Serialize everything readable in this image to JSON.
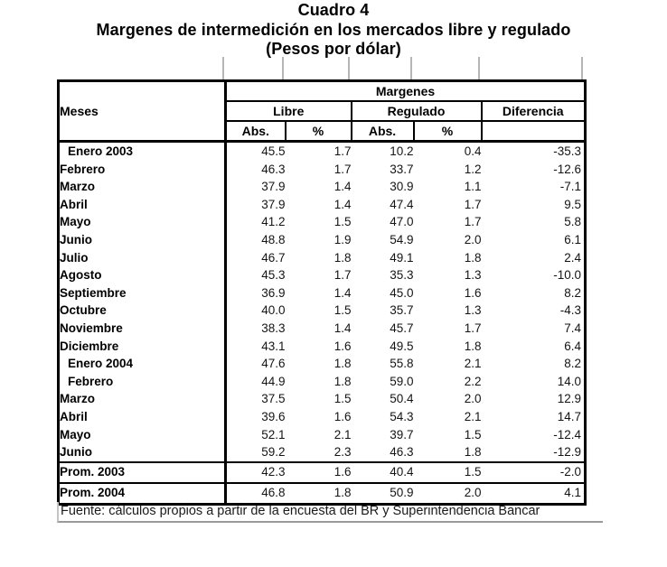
{
  "title": {
    "line1": "Cuadro 4",
    "line2": "Margenes de intermedición en los mercados libre y regulado",
    "line3": "(Pesos por dólar)"
  },
  "table": {
    "col_meses": "Meses",
    "group_margenes": "Margenes",
    "group_libre": "Libre",
    "group_regulado": "Regulado",
    "col_diferencia": "Diferencia",
    "sub_abs": "Abs.",
    "sub_pct": "%",
    "rows": [
      {
        "mes": "Enero 2003",
        "indent": true,
        "libre_abs": "45.5",
        "libre_pct": "1.7",
        "reg_abs": "10.2",
        "reg_pct": "0.4",
        "dif": "-35.3"
      },
      {
        "mes": "Febrero",
        "indent": false,
        "libre_abs": "46.3",
        "libre_pct": "1.7",
        "reg_abs": "33.7",
        "reg_pct": "1.2",
        "dif": "-12.6"
      },
      {
        "mes": "Marzo",
        "indent": false,
        "libre_abs": "37.9",
        "libre_pct": "1.4",
        "reg_abs": "30.9",
        "reg_pct": "1.1",
        "dif": "-7.1"
      },
      {
        "mes": "Abril",
        "indent": false,
        "libre_abs": "37.9",
        "libre_pct": "1.4",
        "reg_abs": "47.4",
        "reg_pct": "1.7",
        "dif": "9.5"
      },
      {
        "mes": "Mayo",
        "indent": false,
        "libre_abs": "41.2",
        "libre_pct": "1.5",
        "reg_abs": "47.0",
        "reg_pct": "1.7",
        "dif": "5.8"
      },
      {
        "mes": "Junio",
        "indent": false,
        "libre_abs": "48.8",
        "libre_pct": "1.9",
        "reg_abs": "54.9",
        "reg_pct": "2.0",
        "dif": "6.1"
      },
      {
        "mes": "Julio",
        "indent": false,
        "libre_abs": "46.7",
        "libre_pct": "1.8",
        "reg_abs": "49.1",
        "reg_pct": "1.8",
        "dif": "2.4"
      },
      {
        "mes": "Agosto",
        "indent": false,
        "libre_abs": "45.3",
        "libre_pct": "1.7",
        "reg_abs": "35.3",
        "reg_pct": "1.3",
        "dif": "-10.0"
      },
      {
        "mes": "Septiembre",
        "indent": false,
        "libre_abs": "36.9",
        "libre_pct": "1.4",
        "reg_abs": "45.0",
        "reg_pct": "1.6",
        "dif": "8.2"
      },
      {
        "mes": "Octubre",
        "indent": false,
        "libre_abs": "40.0",
        "libre_pct": "1.5",
        "reg_abs": "35.7",
        "reg_pct": "1.3",
        "dif": "-4.3"
      },
      {
        "mes": "Noviembre",
        "indent": false,
        "libre_abs": "38.3",
        "libre_pct": "1.4",
        "reg_abs": "45.7",
        "reg_pct": "1.7",
        "dif": "7.4"
      },
      {
        "mes": "Diciembre",
        "indent": false,
        "libre_abs": "43.1",
        "libre_pct": "1.6",
        "reg_abs": "49.5",
        "reg_pct": "1.8",
        "dif": "6.4"
      },
      {
        "mes": "Enero 2004",
        "indent": true,
        "libre_abs": "47.6",
        "libre_pct": "1.8",
        "reg_abs": "55.8",
        "reg_pct": "2.1",
        "dif": "8.2"
      },
      {
        "mes": "Febrero",
        "indent": true,
        "libre_abs": "44.9",
        "libre_pct": "1.8",
        "reg_abs": "59.0",
        "reg_pct": "2.2",
        "dif": "14.0"
      },
      {
        "mes": "Marzo",
        "indent": false,
        "libre_abs": "37.5",
        "libre_pct": "1.5",
        "reg_abs": "50.4",
        "reg_pct": "2.0",
        "dif": "12.9"
      },
      {
        "mes": "Abril",
        "indent": false,
        "libre_abs": "39.6",
        "libre_pct": "1.6",
        "reg_abs": "54.3",
        "reg_pct": "2.1",
        "dif": "14.7"
      },
      {
        "mes": "Mayo",
        "indent": false,
        "libre_abs": "52.1",
        "libre_pct": "2.1",
        "reg_abs": "39.7",
        "reg_pct": "1.5",
        "dif": "-12.4"
      },
      {
        "mes": "Junio",
        "indent": false,
        "libre_abs": "59.2",
        "libre_pct": "2.3",
        "reg_abs": "46.3",
        "reg_pct": "1.8",
        "dif": "-12.9"
      }
    ],
    "summary": [
      {
        "mes": "Prom. 2003",
        "indent": false,
        "libre_abs": "42.3",
        "libre_pct": "1.6",
        "reg_abs": "40.4",
        "reg_pct": "1.5",
        "dif": "-2.0"
      },
      {
        "mes": "Prom. 2004",
        "indent": false,
        "libre_abs": "46.8",
        "libre_pct": "1.8",
        "reg_abs": "50.9",
        "reg_pct": "2.0",
        "dif": "4.1"
      }
    ]
  },
  "footer": {
    "fuente": "Fuente: cálculos propios a partir de la encuesta del BR y Superintendencia Bancar"
  },
  "colors": {
    "border": "#000000",
    "gridline_tick": "#b5b5b5",
    "source_underline": "#9a9a9a",
    "text": "#000000"
  }
}
